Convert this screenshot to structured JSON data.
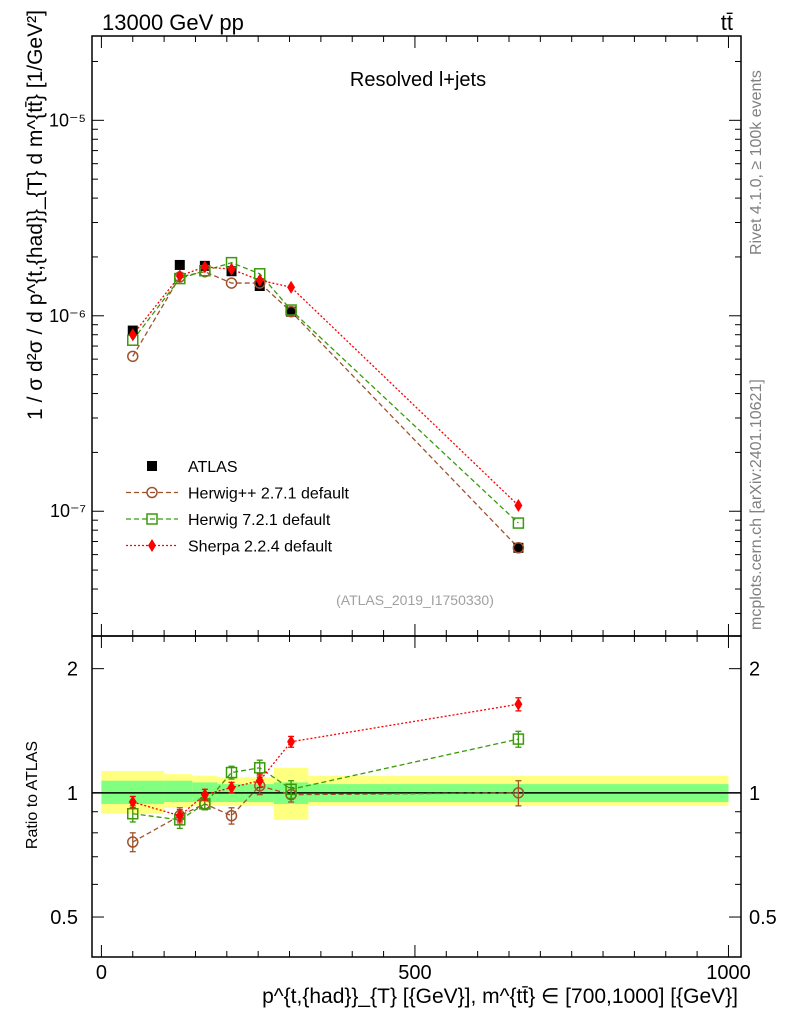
{
  "header": {
    "left": "13000 GeV pp",
    "right": "tt̄"
  },
  "side_text": {
    "rivet": "Rivet 4.1.0, ≥ 100k events",
    "mcplots": "mcplots.cern.ch [arXiv:2401.10621]"
  },
  "chart_data": [
    {
      "type": "scatter",
      "panel": "main",
      "title": "Resolved l+jets",
      "watermark": "(ATLAS_2019_I1750330)",
      "yscale": "log",
      "ylabel": "1 / σ d²σ / d p^{t,{had}}_{T} d m^{tt̄} [1/GeV²]",
      "xlim": [
        -15,
        1020
      ],
      "ylim": [
        2.3e-08,
        2.7e-05
      ],
      "ytick_labels": [
        "10⁻⁷",
        "10⁻⁶",
        "10⁻⁵"
      ],
      "ytick_values": [
        1e-07,
        1e-06,
        1e-05
      ],
      "x": [
        50,
        125,
        165,
        207.5,
        252.5,
        302.5,
        665
      ],
      "series": [
        {
          "name": "ATLAS",
          "marker": "square",
          "color": "#000000",
          "values": [
            8.4e-07,
            1.82e-06,
            1.8e-06,
            1.69e-06,
            1.42e-06,
            1.05e-06,
            6.5e-08
          ]
        },
        {
          "name": "Herwig++ 2.7.1 default",
          "marker": "open-circle",
          "color": "#a0522d",
          "line": "dashed",
          "values": [
            6.2e-07,
            1.58e-06,
            1.68e-06,
            1.47e-06,
            1.47e-06,
            1.05e-06,
            6.5e-08
          ]
        },
        {
          "name": "Herwig 7.2.1 default",
          "marker": "open-square",
          "color": "#3a9a0a",
          "line": "dashed",
          "values": [
            7.5e-07,
            1.55e-06,
            1.7e-06,
            1.87e-06,
            1.64e-06,
            1.07e-06,
            8.7e-08
          ]
        },
        {
          "name": "Sherpa 2.2.4 default",
          "marker": "diamond",
          "color": "#ff0000",
          "line": "dotted",
          "values": [
            8e-07,
            1.6e-06,
            1.78e-06,
            1.73e-06,
            1.52e-06,
            1.4e-06,
            1.07e-07
          ]
        }
      ]
    },
    {
      "type": "scatter",
      "panel": "ratio",
      "ylabel": "Ratio to ATLAS",
      "xlabel": "p^{t,{had}}_{T} [{GeV}], m^{tt̄} ∈ [700,1000] [{GeV}]",
      "yscale": "log",
      "ylim": [
        0.4,
        2.4
      ],
      "ytick_labels": [
        "0.5",
        "1",
        "2"
      ],
      "ytick_values": [
        0.5,
        1,
        2
      ],
      "xtick_labels": [
        "0",
        "500",
        "1000"
      ],
      "xtick_values": [
        0,
        500,
        1000
      ],
      "bands": {
        "bin_edges": [
          0,
          100,
          145,
          185,
          230,
          275,
          330,
          1000
        ],
        "stat_lo": [
          0.94,
          0.95,
          0.95,
          0.95,
          0.95,
          0.94,
          0.95
        ],
        "stat_hi": [
          1.07,
          1.07,
          1.06,
          1.05,
          1.05,
          1.06,
          1.05
        ],
        "total_lo": [
          0.89,
          0.92,
          0.93,
          0.93,
          0.93,
          0.86,
          0.93
        ],
        "total_hi": [
          1.13,
          1.11,
          1.1,
          1.09,
          1.09,
          1.15,
          1.1
        ]
      },
      "x": [
        50,
        125,
        165,
        207.5,
        252.5,
        302.5,
        665
      ],
      "series": [
        {
          "name": "Herwig++ 2.7.1 default",
          "values": [
            0.76,
            0.88,
            0.94,
            0.88,
            1.04,
            0.99,
            1.0
          ],
          "errors": [
            0.04,
            0.04,
            0.03,
            0.04,
            0.05,
            0.04,
            0.07
          ]
        },
        {
          "name": "Herwig 7.2.1 default",
          "values": [
            0.89,
            0.86,
            0.94,
            1.12,
            1.15,
            1.02,
            1.35
          ],
          "errors": [
            0.04,
            0.04,
            0.03,
            0.04,
            0.05,
            0.05,
            0.06
          ]
        },
        {
          "name": "Sherpa 2.2.4 default",
          "values": [
            0.95,
            0.88,
            0.99,
            1.03,
            1.07,
            1.33,
            1.64
          ],
          "errors": [
            0.03,
            0.03,
            0.03,
            0.03,
            0.04,
            0.04,
            0.06
          ]
        }
      ]
    }
  ]
}
